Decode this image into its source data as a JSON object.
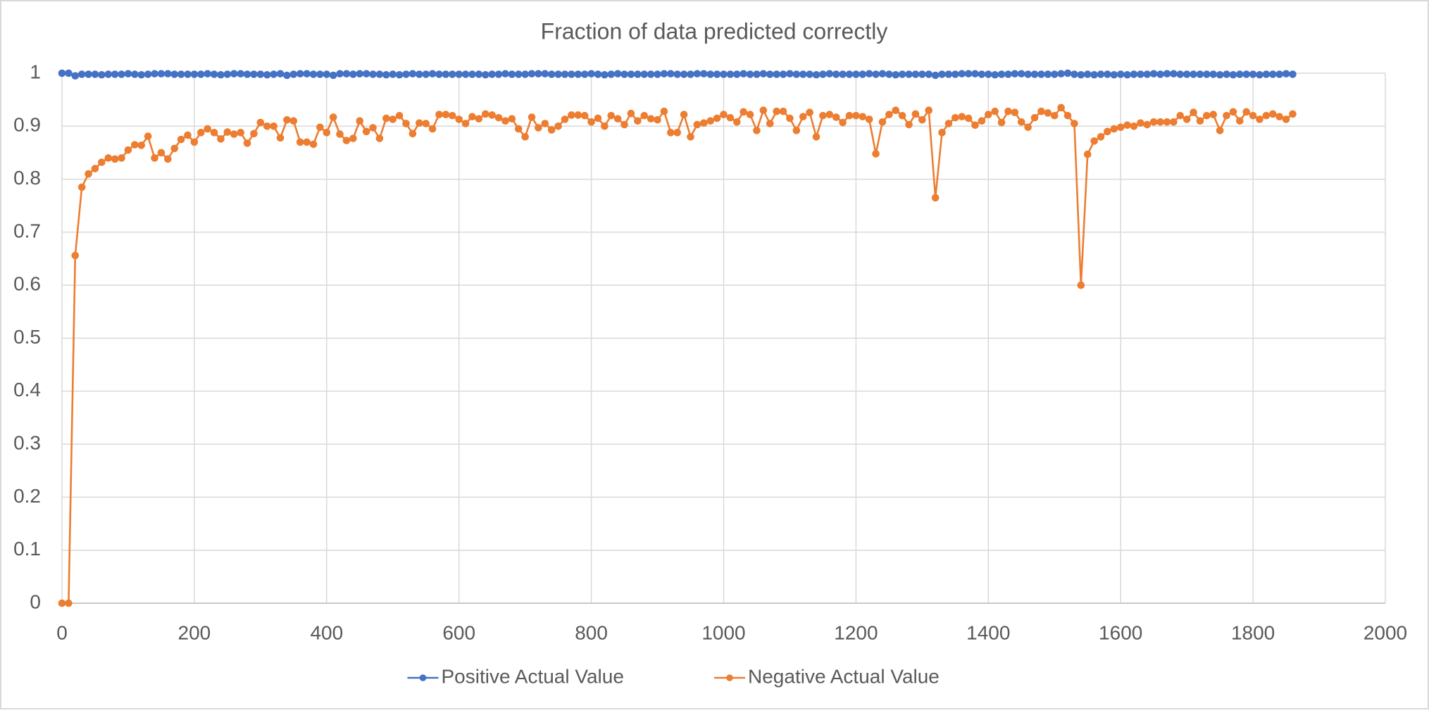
{
  "chart_data": {
    "type": "line",
    "title": "Fraction of data predicted correctly",
    "x": [
      0,
      10,
      20,
      30,
      40,
      50,
      60,
      70,
      80,
      90,
      100,
      110,
      120,
      130,
      140,
      150,
      160,
      170,
      180,
      190,
      200,
      210,
      220,
      230,
      240,
      250,
      260,
      270,
      280,
      290,
      300,
      310,
      320,
      330,
      340,
      350,
      360,
      370,
      380,
      390,
      400,
      410,
      420,
      430,
      440,
      450,
      460,
      470,
      480,
      490,
      500,
      510,
      520,
      530,
      540,
      550,
      560,
      570,
      580,
      590,
      600,
      610,
      620,
      630,
      640,
      650,
      660,
      670,
      680,
      690,
      700,
      710,
      720,
      730,
      740,
      750,
      760,
      770,
      780,
      790,
      800,
      810,
      820,
      830,
      840,
      850,
      860,
      870,
      880,
      890,
      900,
      910,
      920,
      930,
      940,
      950,
      960,
      970,
      980,
      990,
      1000,
      1010,
      1020,
      1030,
      1040,
      1050,
      1060,
      1070,
      1080,
      1090,
      1100,
      1110,
      1120,
      1130,
      1140,
      1150,
      1160,
      1170,
      1180,
      1190,
      1200,
      1210,
      1220,
      1230,
      1240,
      1250,
      1260,
      1270,
      1280,
      1290,
      1300,
      1310,
      1320,
      1330,
      1340,
      1350,
      1360,
      1370,
      1380,
      1390,
      1400,
      1410,
      1420,
      1430,
      1440,
      1450,
      1460,
      1470,
      1480,
      1490,
      1500,
      1510,
      1520,
      1530,
      1540,
      1550,
      1560,
      1570,
      1580,
      1590,
      1600,
      1610,
      1620,
      1630,
      1640,
      1650,
      1660,
      1670,
      1680,
      1690,
      1700,
      1710,
      1720,
      1730,
      1740,
      1750,
      1760,
      1770,
      1780,
      1790,
      1800,
      1810,
      1820,
      1830,
      1840,
      1850,
      1860
    ],
    "series": [
      {
        "name": "Positive Actual Value",
        "color": "#4472c4",
        "values": [
          1,
          1,
          0.995,
          0.998,
          0.998,
          0.998,
          0.997,
          0.998,
          0.998,
          0.998,
          0.999,
          0.998,
          0.997,
          0.998,
          0.999,
          0.999,
          0.999,
          0.998,
          0.998,
          0.998,
          0.998,
          0.998,
          0.999,
          0.998,
          0.997,
          0.998,
          0.999,
          0.999,
          0.998,
          0.998,
          0.998,
          0.997,
          0.998,
          0.999,
          0.996,
          0.998,
          0.999,
          0.999,
          0.998,
          0.998,
          0.998,
          0.996,
          0.999,
          0.999,
          0.998,
          0.999,
          0.999,
          0.998,
          0.998,
          0.997,
          0.998,
          0.997,
          0.998,
          0.999,
          0.998,
          0.998,
          0.999,
          0.998,
          0.998,
          0.998,
          0.998,
          0.998,
          0.998,
          0.998,
          0.997,
          0.998,
          0.998,
          0.999,
          0.998,
          0.998,
          0.998,
          0.999,
          0.999,
          0.999,
          0.998,
          0.998,
          0.998,
          0.998,
          0.998,
          0.998,
          0.999,
          0.998,
          0.997,
          0.998,
          0.999,
          0.998,
          0.998,
          0.998,
          0.998,
          0.998,
          0.998,
          0.999,
          0.999,
          0.998,
          0.998,
          0.998,
          0.999,
          0.999,
          0.998,
          0.998,
          0.998,
          0.998,
          0.998,
          0.999,
          0.998,
          0.998,
          0.999,
          0.998,
          0.998,
          0.998,
          0.999,
          0.998,
          0.998,
          0.998,
          0.997,
          0.998,
          0.999,
          0.998,
          0.998,
          0.998,
          0.998,
          0.998,
          0.999,
          0.998,
          0.999,
          0.998,
          0.997,
          0.998,
          0.998,
          0.998,
          0.998,
          0.998,
          0.996,
          0.998,
          0.998,
          0.998,
          0.999,
          0.999,
          0.999,
          0.998,
          0.998,
          0.997,
          0.998,
          0.998,
          0.999,
          0.999,
          0.998,
          0.998,
          0.998,
          0.998,
          0.998,
          0.999,
          1,
          0.998,
          0.997,
          0.998,
          0.997,
          0.998,
          0.998,
          0.997,
          0.998,
          0.997,
          0.998,
          0.998,
          0.998,
          0.999,
          0.998,
          0.999,
          0.999,
          0.998,
          0.998,
          0.998,
          0.998,
          0.998,
          0.998,
          0.997,
          0.998,
          0.997,
          0.998,
          0.998,
          0.998,
          0.997,
          0.998,
          0.998,
          0.998,
          0.999,
          0.998
        ]
      },
      {
        "name": "Negative Actual Value",
        "color": "#ed7d31",
        "values": [
          0,
          0,
          0.656,
          0.785,
          0.81,
          0.82,
          0.832,
          0.84,
          0.838,
          0.84,
          0.855,
          0.865,
          0.864,
          0.881,
          0.84,
          0.85,
          0.838,
          0.858,
          0.875,
          0.883,
          0.87,
          0.888,
          0.895,
          0.888,
          0.876,
          0.889,
          0.885,
          0.888,
          0.868,
          0.886,
          0.907,
          0.9,
          0.9,
          0.878,
          0.912,
          0.91,
          0.87,
          0.87,
          0.866,
          0.898,
          0.888,
          0.917,
          0.885,
          0.873,
          0.877,
          0.91,
          0.89,
          0.897,
          0.877,
          0.915,
          0.913,
          0.92,
          0.905,
          0.886,
          0.906,
          0.905,
          0.895,
          0.922,
          0.922,
          0.92,
          0.913,
          0.905,
          0.918,
          0.914,
          0.923,
          0.921,
          0.916,
          0.91,
          0.914,
          0.895,
          0.88,
          0.917,
          0.897,
          0.905,
          0.893,
          0.9,
          0.913,
          0.921,
          0.921,
          0.92,
          0.908,
          0.915,
          0.9,
          0.92,
          0.914,
          0.903,
          0.924,
          0.91,
          0.92,
          0.914,
          0.912,
          0.928,
          0.888,
          0.888,
          0.922,
          0.88,
          0.903,
          0.906,
          0.91,
          0.915,
          0.922,
          0.916,
          0.908,
          0.927,
          0.922,
          0.892,
          0.93,
          0.905,
          0.928,
          0.928,
          0.915,
          0.892,
          0.918,
          0.926,
          0.88,
          0.92,
          0.922,
          0.917,
          0.907,
          0.92,
          0.92,
          0.918,
          0.913,
          0.848,
          0.908,
          0.922,
          0.93,
          0.92,
          0.903,
          0.923,
          0.912,
          0.93,
          0.765,
          0.888,
          0.905,
          0.916,
          0.918,
          0.915,
          0.902,
          0.91,
          0.922,
          0.928,
          0.907,
          0.928,
          0.926,
          0.908,
          0.898,
          0.916,
          0.928,
          0.925,
          0.92,
          0.935,
          0.92,
          0.905,
          0.6,
          0.847,
          0.872,
          0.88,
          0.89,
          0.895,
          0.898,
          0.902,
          0.9,
          0.906,
          0.903,
          0.908,
          0.908,
          0.908,
          0.908,
          0.92,
          0.913,
          0.926,
          0.91,
          0.92,
          0.922,
          0.892,
          0.92,
          0.927,
          0.91,
          0.927,
          0.92,
          0.913,
          0.92,
          0.923,
          0.918,
          0.913,
          0.923
        ]
      }
    ],
    "xlim": [
      0,
      2000
    ],
    "xticks": [
      0,
      200,
      400,
      600,
      800,
      1000,
      1200,
      1400,
      1600,
      1800,
      2000
    ],
    "ylim": [
      0,
      1
    ],
    "yticks": [
      0,
      0.1,
      0.2,
      0.3,
      0.4,
      0.5,
      0.6,
      0.7,
      0.8,
      0.9,
      1
    ],
    "grid": true,
    "legend": "bottom"
  }
}
